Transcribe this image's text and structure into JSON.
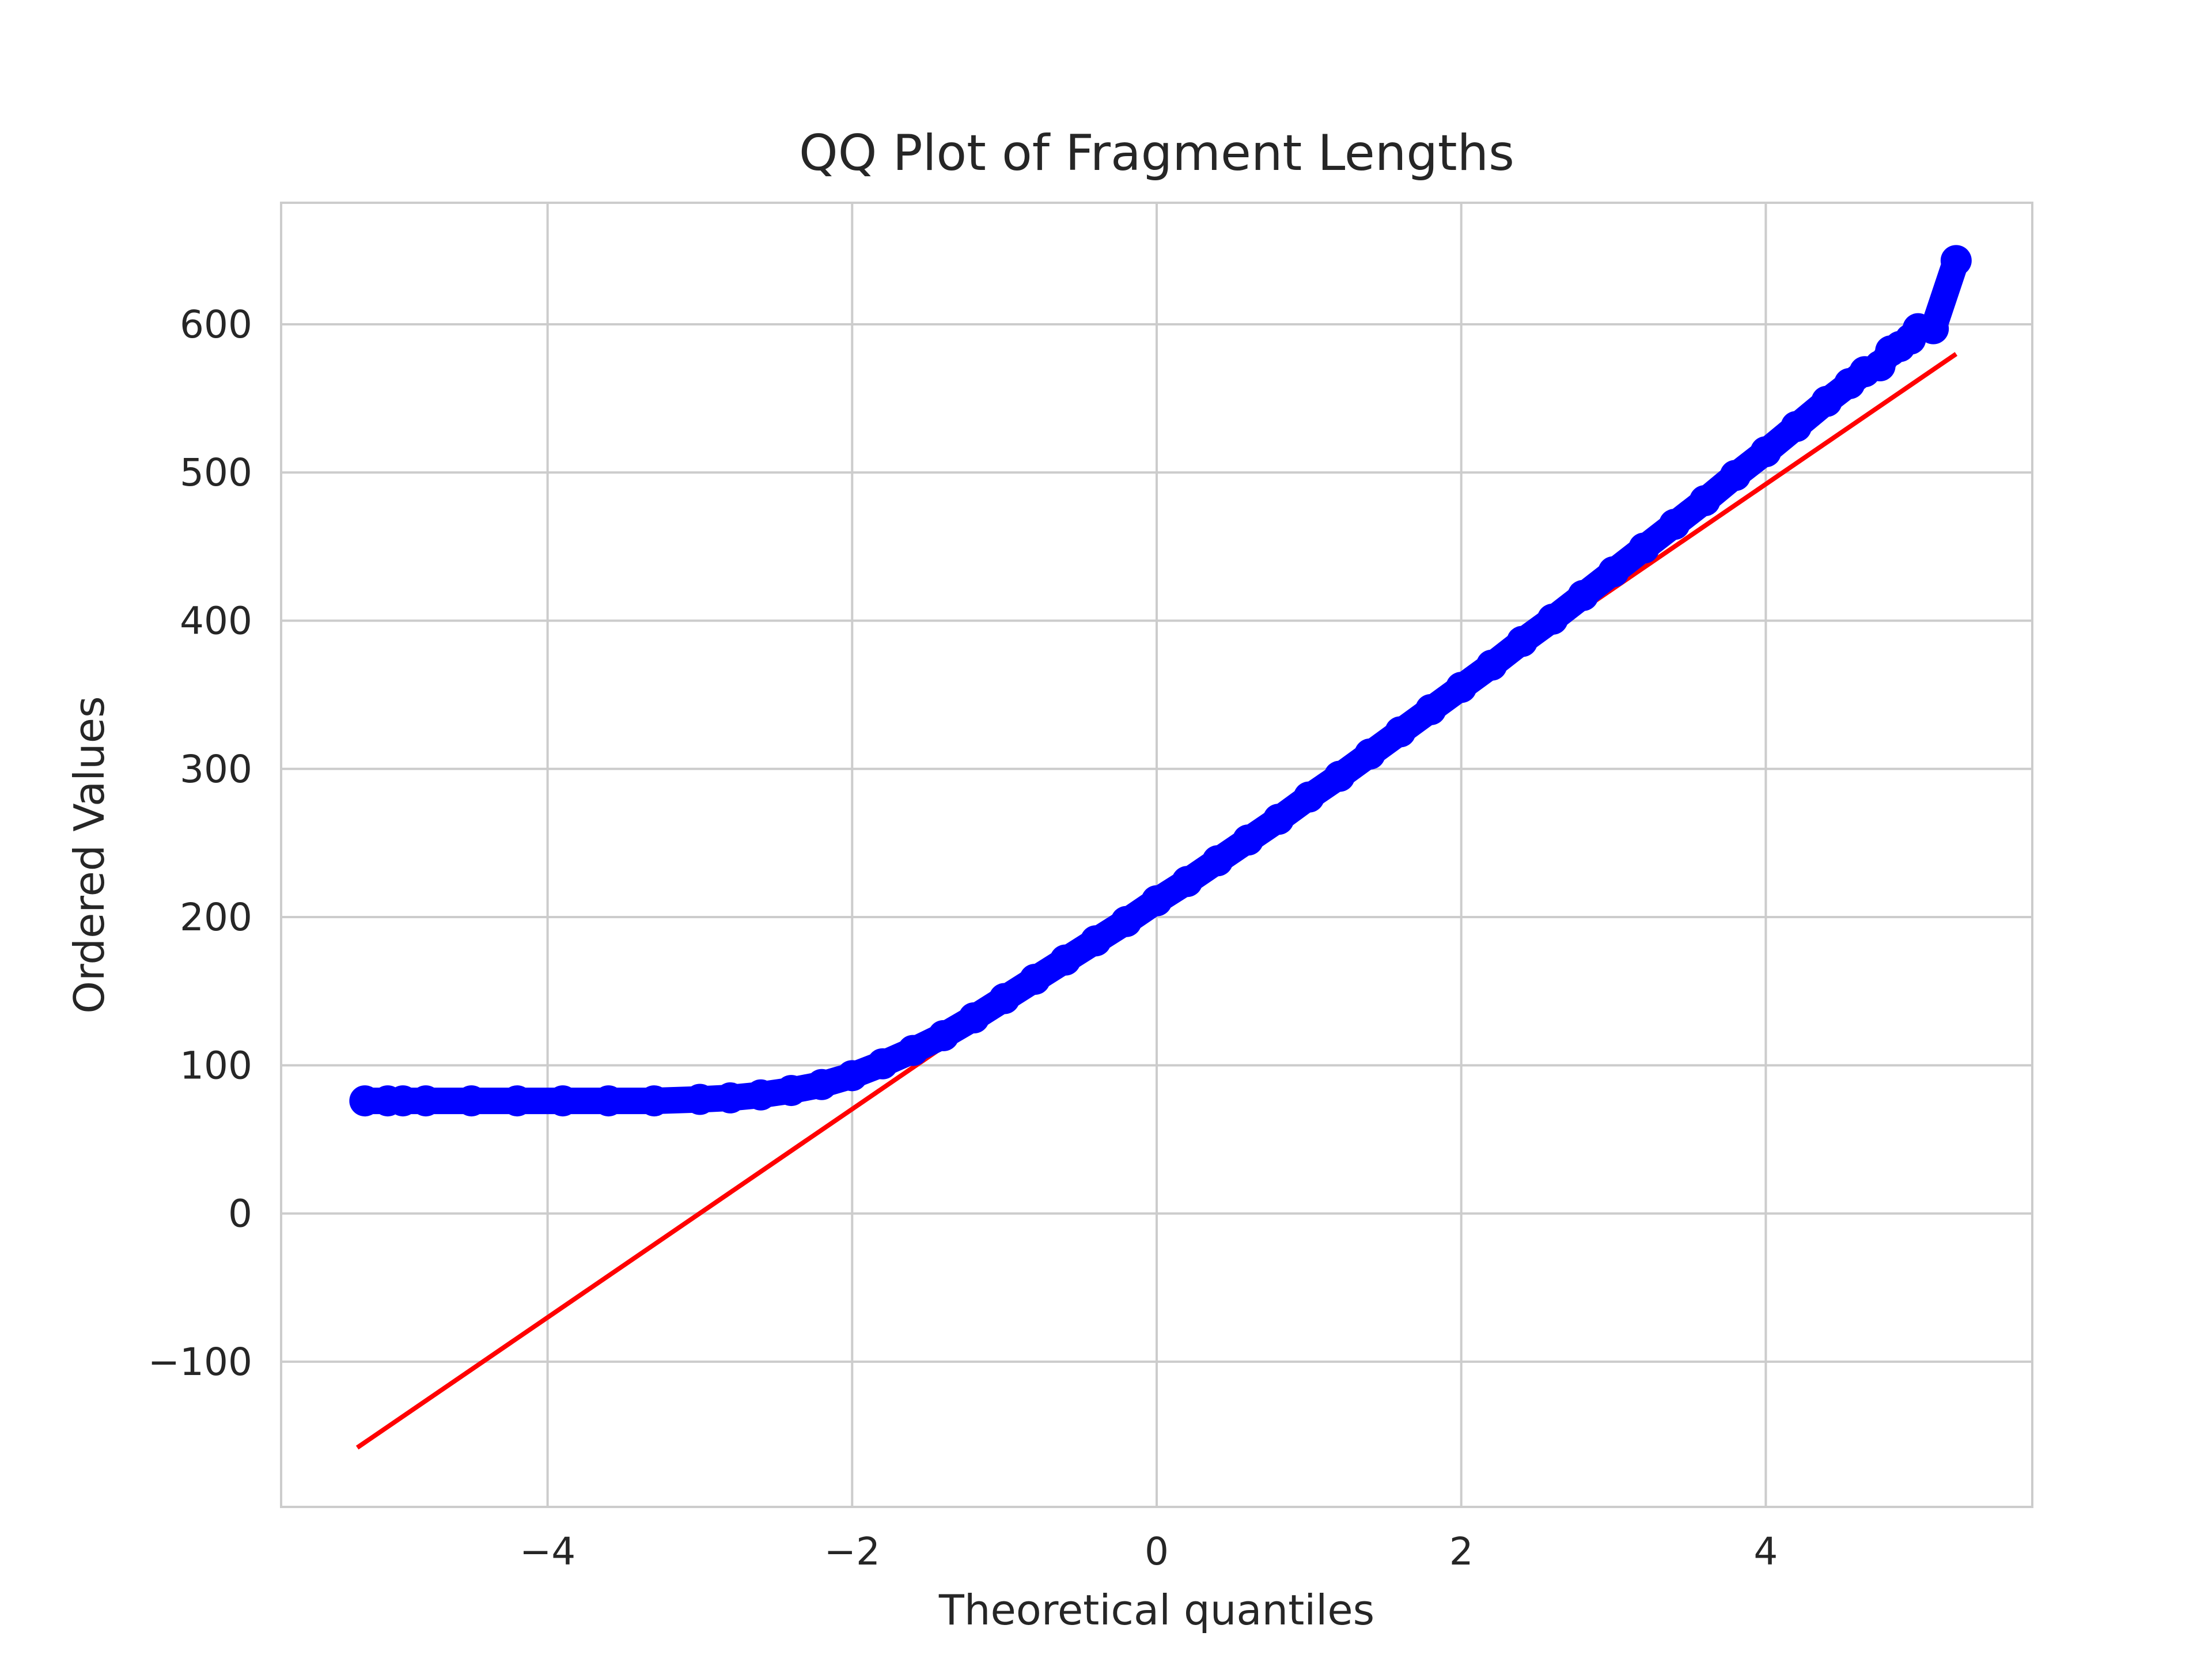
{
  "chart_data": {
    "type": "scatter",
    "title": "QQ Plot of Fragment Lengths",
    "xlabel": "Theoretical quantiles",
    "ylabel": "Ordered Values",
    "xlim": [
      -5.75,
      5.75
    ],
    "ylim": [
      -198,
      682
    ],
    "x_ticks": [
      -4,
      -2,
      0,
      2,
      4
    ],
    "x_tick_labels": [
      "−4",
      "−2",
      "0",
      "2",
      "4"
    ],
    "y_ticks": [
      -100,
      0,
      100,
      200,
      300,
      400,
      500,
      600
    ],
    "y_tick_labels": [
      "−100",
      "0",
      "100",
      "200",
      "300",
      "400",
      "500",
      "600"
    ],
    "grid": true,
    "series": [
      {
        "kind": "scatter",
        "color": "#0000ff",
        "points": [
          [
            -5.2,
            76
          ],
          [
            -5.05,
            76
          ],
          [
            -4.95,
            76
          ],
          [
            -4.8,
            76
          ],
          [
            -4.5,
            76
          ],
          [
            -4.2,
            76
          ],
          [
            -3.9,
            76
          ],
          [
            -3.6,
            76
          ],
          [
            -3.3,
            76
          ],
          [
            -3.0,
            77
          ],
          [
            -2.8,
            78
          ],
          [
            -2.6,
            80
          ],
          [
            -2.4,
            83
          ],
          [
            -2.2,
            87
          ],
          [
            -2.0,
            93
          ],
          [
            -1.8,
            101
          ],
          [
            -1.6,
            110
          ],
          [
            -1.4,
            120
          ],
          [
            -1.2,
            132
          ],
          [
            -1.0,
            145
          ],
          [
            -0.8,
            158
          ],
          [
            -0.6,
            171
          ],
          [
            -0.4,
            184
          ],
          [
            -0.2,
            197
          ],
          [
            0.0,
            211
          ],
          [
            0.2,
            224
          ],
          [
            0.4,
            238
          ],
          [
            0.6,
            252
          ],
          [
            0.8,
            266
          ],
          [
            1.0,
            281
          ],
          [
            1.2,
            295
          ],
          [
            1.4,
            310
          ],
          [
            1.6,
            325
          ],
          [
            1.8,
            340
          ],
          [
            2.0,
            355
          ],
          [
            2.2,
            370
          ],
          [
            2.4,
            386
          ],
          [
            2.6,
            401
          ],
          [
            2.8,
            417
          ],
          [
            3.0,
            433
          ],
          [
            3.2,
            449
          ],
          [
            3.4,
            465
          ],
          [
            3.6,
            481
          ],
          [
            3.8,
            498
          ],
          [
            4.0,
            514
          ],
          [
            4.2,
            531
          ],
          [
            4.4,
            548
          ],
          [
            4.55,
            560
          ],
          [
            4.65,
            568
          ],
          [
            4.75,
            572
          ],
          [
            4.82,
            582
          ],
          [
            4.88,
            585
          ],
          [
            4.95,
            590
          ],
          [
            5.0,
            597
          ],
          [
            5.1,
            597
          ],
          [
            5.25,
            643
          ]
        ]
      },
      {
        "kind": "line",
        "color": "#ff0000",
        "points": [
          [
            -5.25,
            -158
          ],
          [
            5.25,
            580
          ]
        ]
      }
    ]
  }
}
